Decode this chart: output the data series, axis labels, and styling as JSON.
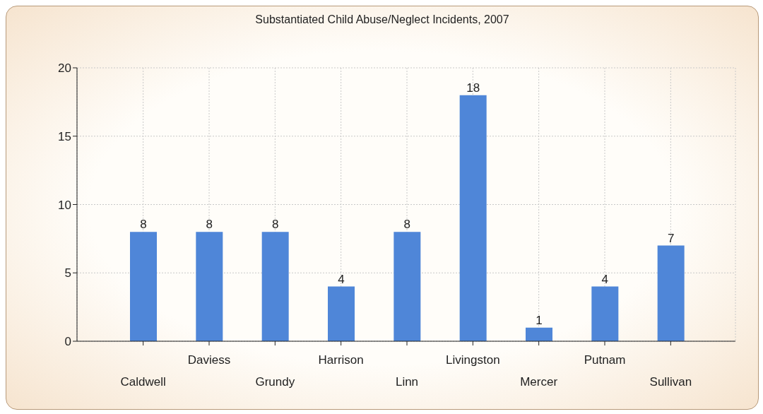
{
  "chart_data": {
    "type": "bar",
    "title": "Substantiated Child Abuse/Neglect Incidents, 2007",
    "categories": [
      "Caldwell",
      "Daviess",
      "Grundy",
      "Harrison",
      "Linn",
      "Livingston",
      "Mercer",
      "Putnam",
      "Sullivan"
    ],
    "values": [
      8,
      8,
      8,
      4,
      8,
      18,
      1,
      4,
      7
    ],
    "color": "#4f86d8",
    "ylim": [
      0,
      20
    ],
    "yticks": [
      0,
      5,
      10,
      15,
      20
    ],
    "grid": true,
    "data_labels": true
  }
}
